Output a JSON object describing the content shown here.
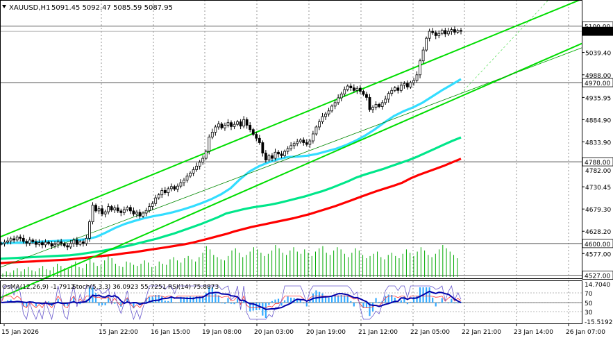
{
  "header": {
    "symbol": "XAUUSD,H1",
    "ohlc": "5091.45 5092.47 5085.59 5087.95"
  },
  "chart_data": {
    "type": "candlestick",
    "symbol": "XAUUSD",
    "timeframe": "H1",
    "price_axis": {
      "range": [
        4520,
        5160
      ],
      "ticks": [
        "5039.40",
        "4988.00",
        "4935.95",
        "4884.90",
        "4833.90",
        "4730.45",
        "4679.30",
        "4628.20",
        "4577.00"
      ],
      "labels_highlight": [
        {
          "value": 5100.0,
          "text": "5100.00"
        },
        {
          "value": 5087.95,
          "text": "5087.95",
          "current": true
        },
        {
          "value": 4970.0,
          "text": "4970.00"
        },
        {
          "value": 4788.0,
          "text": "4788.00"
        },
        {
          "value": 4600.0,
          "text": "4600.00"
        },
        {
          "value": 4527.0,
          "text": "4527.00"
        }
      ],
      "hidden_tick": "4782.00"
    },
    "time_axis": [
      "15 Jan 2026",
      "15 Jan 22:00",
      "16 Jan 15:00",
      "19 Jan 08:00",
      "20 Jan 03:00",
      "20 Jan 19:00",
      "21 Jan 12:00",
      "22 Jan 05:00",
      "22 Jan 21:00",
      "23 Jan 14:00",
      "26 Jan 07:00"
    ],
    "horizontal_levels": [
      5100,
      4970,
      4788,
      4600,
      4527
    ],
    "price_series": [
      4600,
      4603,
      4606,
      4611,
      4608,
      4615,
      4612,
      4605,
      4601,
      4608,
      4604,
      4598,
      4602,
      4597,
      4603,
      4600,
      4594,
      4598,
      4604,
      4600,
      4595,
      4592,
      4600,
      4608,
      4598,
      4604,
      4600,
      4612,
      4650,
      4688,
      4675,
      4680,
      4668,
      4673,
      4685,
      4677,
      4682,
      4675,
      4671,
      4678,
      4683,
      4675,
      4668,
      4672,
      4663,
      4670,
      4676,
      4685,
      4692,
      4705,
      4712,
      4722,
      4717,
      4726,
      4731,
      4725,
      4732,
      4740,
      4746,
      4755,
      4762,
      4770,
      4778,
      4787,
      4796,
      4812,
      4845,
      4856,
      4868,
      4875,
      4866,
      4872,
      4878,
      4869,
      4874,
      4880,
      4870,
      4885,
      4872,
      4862,
      4851,
      4842,
      4832,
      4808,
      4792,
      4802,
      4796,
      4810,
      4806,
      4802,
      4812,
      4818,
      4825,
      4830,
      4834,
      4838,
      4832,
      4828,
      4836,
      4852,
      4868,
      4880,
      4892,
      4898,
      4905,
      4916,
      4924,
      4935,
      4944,
      4954,
      4962,
      4958,
      4952,
      4957,
      4950,
      4943,
      4936,
      4908,
      4913,
      4920,
      4915,
      4924,
      4932,
      4945,
      4952,
      4958,
      4952,
      4964,
      4968,
      4960,
      4970,
      4975,
      4988,
      5020,
      5045,
      5072,
      5088,
      5085,
      5078,
      5083,
      5090,
      5082,
      5088,
      5092,
      5086,
      5090,
      5088
    ],
    "ma_series": [
      {
        "color": "#ff0000",
        "values": [
          4555,
          4556,
          4557,
          4558,
          4559,
          4560,
          4561,
          4562,
          4563,
          4565,
          4567,
          4569,
          4571,
          4573,
          4575,
          4578,
          4580,
          4583,
          4586,
          4589,
          4592,
          4595,
          4598,
          4602,
          4607,
          4612,
          4617,
          4622,
          4628,
          4633,
          4638,
          4642,
          4646,
          4650,
          4654,
          4658,
          4663,
          4668,
          4674,
          4680,
          4686,
          4693,
          4700,
          4707,
          4714,
          4721,
          4727,
          4733,
          4740,
          4750,
          4758,
          4765,
          4772,
          4779,
          4787,
          4795
        ]
      },
      {
        "color": "#00e68a",
        "values": [
          4565,
          4566,
          4567,
          4568,
          4569,
          4570,
          4571,
          4572,
          4573,
          4575,
          4578,
          4581,
          4584,
          4588,
          4592,
          4596,
          4601,
          4606,
          4611,
          4617,
          4623,
          4630,
          4637,
          4644,
          4652,
          4660,
          4669,
          4674,
          4679,
          4683,
          4686,
          4689,
          4693,
          4698,
          4703,
          4708,
          4714,
          4720,
          4727,
          4735,
          4743,
          4752,
          4759,
          4765,
          4771,
          4778,
          4785,
          4792,
          4800,
          4809,
          4818,
          4827,
          4836,
          4844
        ]
      },
      {
        "color": "#33ddff",
        "values": [
          4600,
          4601,
          4602,
          4603,
          4604,
          4605,
          4606,
          4607,
          4608,
          4610,
          4615,
          4625,
          4636,
          4645,
          4652,
          4658,
          4663,
          4667,
          4672,
          4678,
          4685,
          4693,
          4702,
          4713,
          4727,
          4748,
          4766,
          4778,
          4787,
          4794,
          4799,
          4800,
          4802,
          4806,
          4812,
          4818,
          4826,
          4836,
          4848,
          4862,
          4878,
          4893,
          4904,
          4913,
          4924,
          4938,
          4952,
          4965,
          4978
        ]
      }
    ],
    "channel_lines": [
      {
        "color": "#00dd00",
        "points": [
          [
            0,
            4615
          ],
          [
            1,
            5162
          ]
        ],
        "note": "upper"
      },
      {
        "color": "#00dd00",
        "points": [
          [
            0,
            4475
          ],
          [
            1,
            5060
          ]
        ],
        "note": "lower"
      },
      {
        "color": "#008800",
        "points": [
          [
            0,
            4545
          ],
          [
            1,
            5050
          ]
        ],
        "note": "middle"
      }
    ],
    "volume": [
      3,
      5,
      4,
      6,
      8,
      5,
      7,
      9,
      6,
      5,
      8,
      10,
      7,
      6,
      9,
      12,
      10,
      8,
      7,
      11,
      14,
      9,
      8,
      12,
      16,
      13,
      10,
      11,
      15,
      20,
      17,
      12,
      10,
      9,
      14,
      13,
      11,
      10,
      12,
      15,
      13,
      9,
      10,
      14,
      12,
      11,
      16,
      18,
      15,
      13,
      17,
      19,
      16,
      14,
      18,
      22,
      28,
      25,
      20,
      18,
      16,
      15,
      19,
      24,
      26,
      22,
      18,
      20,
      23,
      27,
      25,
      22,
      19,
      21,
      24,
      29,
      26,
      22,
      20,
      24,
      27,
      23,
      21,
      25,
      22,
      19,
      23,
      26,
      28,
      22,
      20,
      24,
      27,
      25,
      21,
      18,
      22,
      26,
      24,
      20,
      17,
      19,
      21,
      23,
      18,
      16,
      20,
      22,
      19,
      17,
      21,
      25,
      22,
      19,
      23,
      27,
      24,
      20,
      18,
      21,
      25,
      29,
      26,
      23,
      20,
      17
    ],
    "oscillator_panel": {
      "labels": [
        "OsMA(12,26,9) -1.7912",
        "Stoch(5,3,3) 36.0923 55.7251",
        "RSI(14) 75.8873"
      ],
      "axis": [
        "14.7040",
        "70",
        "50",
        "30",
        "-15.5192"
      ]
    }
  }
}
